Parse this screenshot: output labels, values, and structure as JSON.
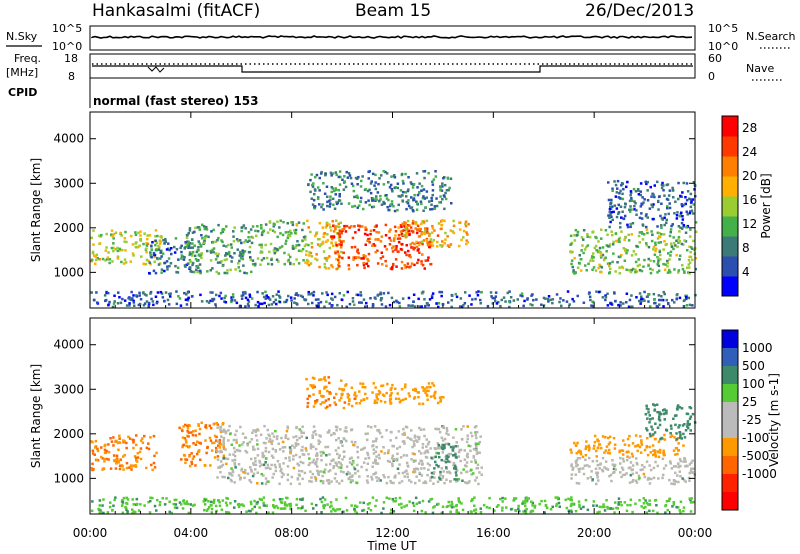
{
  "header": {
    "station": "Hankasalmi (fitACF)",
    "beam": "Beam 15",
    "date": "26/Dec/2013"
  },
  "left_labels": {
    "nsky": "N.Sky",
    "freq_line1": "Freq.",
    "freq_line2": "[MHz]",
    "cpid": "CPID"
  },
  "right_labels": {
    "nsearch": "N.Search",
    "nave": "Nave"
  },
  "noise_axis": {
    "top": "10^5",
    "bottom": "10^0"
  },
  "freq_axis": {
    "top": "18",
    "bottom": "8"
  },
  "nave_axis": {
    "top": "60",
    "bottom": "0"
  },
  "cpid_text": "normal (fast stereo) 153",
  "x_axis": {
    "label": "Time UT",
    "ticks": [
      "00:00",
      "04:00",
      "08:00",
      "12:00",
      "16:00",
      "20:00",
      "00:00"
    ]
  },
  "colors": {
    "power_scale": [
      "#0000ff",
      "#2a4fb0",
      "#3c7a78",
      "#44b04a",
      "#9acd32",
      "#ffb000",
      "#ff7f00",
      "#ff3a00",
      "#ff0000"
    ],
    "velocity_scale": [
      "#0000dd",
      "#2f5fb8",
      "#3c8a6a",
      "#55cc33",
      "#bbbbbb",
      "#bbbbbb",
      "#ff9900",
      "#ff6600",
      "#ff2200",
      "#ff0000"
    ],
    "ground_scatter": "#b9b8b0"
  },
  "chart_data": [
    {
      "type": "heatmap",
      "panel": "power",
      "ylabel": "Slant Range [km]",
      "yticks": [
        "1000",
        "2000",
        "3000",
        "4000"
      ],
      "ylim": [
        200,
        4600
      ],
      "colorbar_label": "Power [dB]",
      "colorbar_ticks": [
        "4",
        "8",
        "12",
        "16",
        "20",
        "24",
        "28"
      ],
      "colorbar_range": [
        0,
        30
      ],
      "regions": [
        {
          "t0": 0.0,
          "t1": 2.8,
          "r0": 1200,
          "r1": 2000,
          "level": 16
        },
        {
          "t0": 2.3,
          "t1": 4.5,
          "r0": 1000,
          "r1": 1800,
          "level": 6
        },
        {
          "t0": 3.7,
          "t1": 6.5,
          "r0": 1000,
          "r1": 2100,
          "level": 10
        },
        {
          "t0": 6.5,
          "t1": 8.5,
          "r0": 1200,
          "r1": 2200,
          "level": 12
        },
        {
          "t0": 8.5,
          "t1": 10.0,
          "r0": 1100,
          "r1": 2200,
          "level": 18
        },
        {
          "t0": 9.5,
          "t1": 13.5,
          "r0": 1100,
          "r1": 2100,
          "level": 26
        },
        {
          "t0": 12.0,
          "t1": 15.0,
          "r0": 1600,
          "r1": 2200,
          "level": 20
        },
        {
          "t0": 8.6,
          "t1": 14.3,
          "r0": 2400,
          "r1": 3300,
          "level": 7
        },
        {
          "t0": 19.0,
          "t1": 24.0,
          "r0": 1000,
          "r1": 2000,
          "level": 13
        },
        {
          "t0": 20.5,
          "t1": 24.0,
          "r0": 2000,
          "r1": 3100,
          "level": 5
        },
        {
          "t0": 0.0,
          "t1": 24.0,
          "r0": 250,
          "r1": 600,
          "level": 5
        }
      ]
    },
    {
      "type": "heatmap",
      "panel": "velocity",
      "ylabel": "Slant Range [km]",
      "yticks": [
        "1000",
        "2000",
        "3000",
        "4000"
      ],
      "ylim": [
        200,
        4600
      ],
      "colorbar_label": "Velocity [m s-1]",
      "colorbar_ticks": [
        "1000",
        "500",
        "100",
        "25",
        "-25",
        "-100",
        "-500",
        "-1000"
      ],
      "regions": [
        {
          "t0": 0.0,
          "t1": 2.6,
          "r0": 1200,
          "r1": 2000,
          "v": -500
        },
        {
          "t0": 3.5,
          "t1": 5.3,
          "r0": 1300,
          "r1": 2300,
          "v": -500
        },
        {
          "t0": 5.0,
          "t1": 15.5,
          "r0": 900,
          "r1": 2200,
          "v": 0
        },
        {
          "t0": 8.5,
          "t1": 10.5,
          "r0": 2600,
          "r1": 3300,
          "v": -400
        },
        {
          "t0": 10.5,
          "t1": 14.0,
          "r0": 2700,
          "r1": 3200,
          "v": -200
        },
        {
          "t0": 13.5,
          "t1": 14.5,
          "r0": 1000,
          "r1": 1800,
          "v": 300
        },
        {
          "t0": 19.0,
          "t1": 23.5,
          "r0": 1500,
          "r1": 2000,
          "v": -300
        },
        {
          "t0": 19.0,
          "t1": 24.0,
          "r0": 900,
          "r1": 1500,
          "v": 0
        },
        {
          "t0": 22.0,
          "t1": 24.0,
          "r0": 1900,
          "r1": 2700,
          "v": 300
        },
        {
          "t0": 0.0,
          "t1": 24.0,
          "r0": 250,
          "r1": 600,
          "v": 80
        }
      ]
    }
  ]
}
